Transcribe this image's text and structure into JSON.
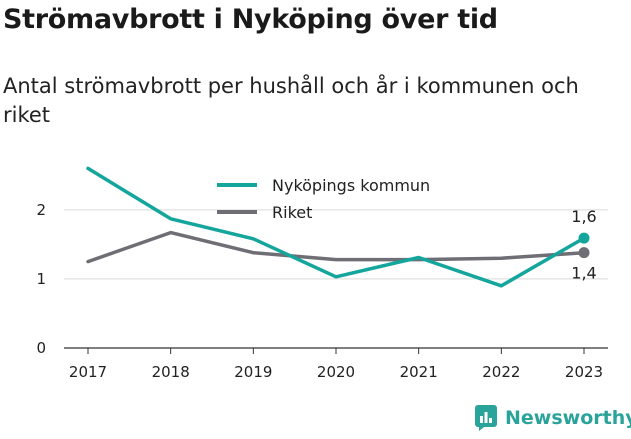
{
  "header": {
    "title": "Strömavbrott i Nyköping över tid",
    "subtitle": "Antal strömavbrott per hushåll och år i kommunen och riket"
  },
  "brand": {
    "name": "Newsworthy",
    "icon": "newsworthy-logo-icon",
    "color": "#2aa39a"
  },
  "chart_data": {
    "type": "line",
    "x": [
      "2017",
      "2018",
      "2019",
      "2020",
      "2021",
      "2022",
      "2023"
    ],
    "ylim": [
      0,
      2.75
    ],
    "yticks": [
      0,
      1,
      2
    ],
    "ytick_labels": [
      "0",
      "1",
      "2"
    ],
    "xlabel": "",
    "ylabel": "",
    "grid": true,
    "legend": "top-center",
    "series": [
      {
        "name": "Nyköpings kommun",
        "color": "#14a59c",
        "values": [
          2.6,
          1.87,
          1.58,
          1.03,
          1.31,
          0.9,
          1.59
        ],
        "end_label": "1,6"
      },
      {
        "name": "Riket",
        "color": "#6f6e74",
        "values": [
          1.25,
          1.67,
          1.38,
          1.28,
          1.28,
          1.3,
          1.38
        ],
        "end_label": "1,4"
      }
    ]
  }
}
